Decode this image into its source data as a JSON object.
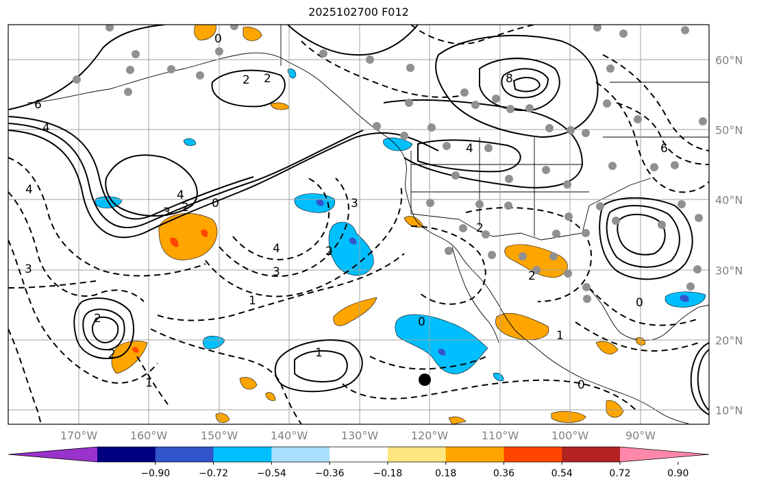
{
  "title": "2025102700 F012",
  "lon_labels": [
    "170°W",
    "160°W",
    "150°W",
    "140°W",
    "130°W",
    "120°W",
    "110°W",
    "100°W",
    "90°W"
  ],
  "lat_labels": [
    "60°N",
    "50°N",
    "40°N",
    "30°N",
    "20°N",
    "10°N"
  ],
  "colorbar": {
    "colors": [
      "#9933cc",
      "#000080",
      "#3355cc",
      "#00bfff",
      "#aadfff",
      "#ffffff",
      "#ffe680",
      "#ffa500",
      "#ff4500",
      "#b22222",
      "#ff88aa"
    ],
    "tick_labels": [
      "−0.90",
      "−0.72",
      "−0.54",
      "−0.36",
      "−0.18",
      "0.18",
      "0.36",
      "0.54",
      "0.72",
      "0.90"
    ]
  },
  "contour_labels": {
    "solid": [
      "2",
      "2",
      "4",
      "6",
      "8",
      "4",
      "4",
      "6",
      "3",
      "2",
      "2",
      "1",
      "2",
      "0"
    ],
    "dashed": [
      "0",
      "0",
      "1",
      "2",
      "3",
      "4",
      "4",
      "3",
      "1",
      "2",
      "3",
      "2",
      "1",
      "0",
      "0"
    ]
  },
  "colors": {
    "frame": "#000000",
    "grid": "#a0a0a0",
    "tick_label": "#808080",
    "positive": "#ffa500",
    "negative": "#00bfff"
  }
}
